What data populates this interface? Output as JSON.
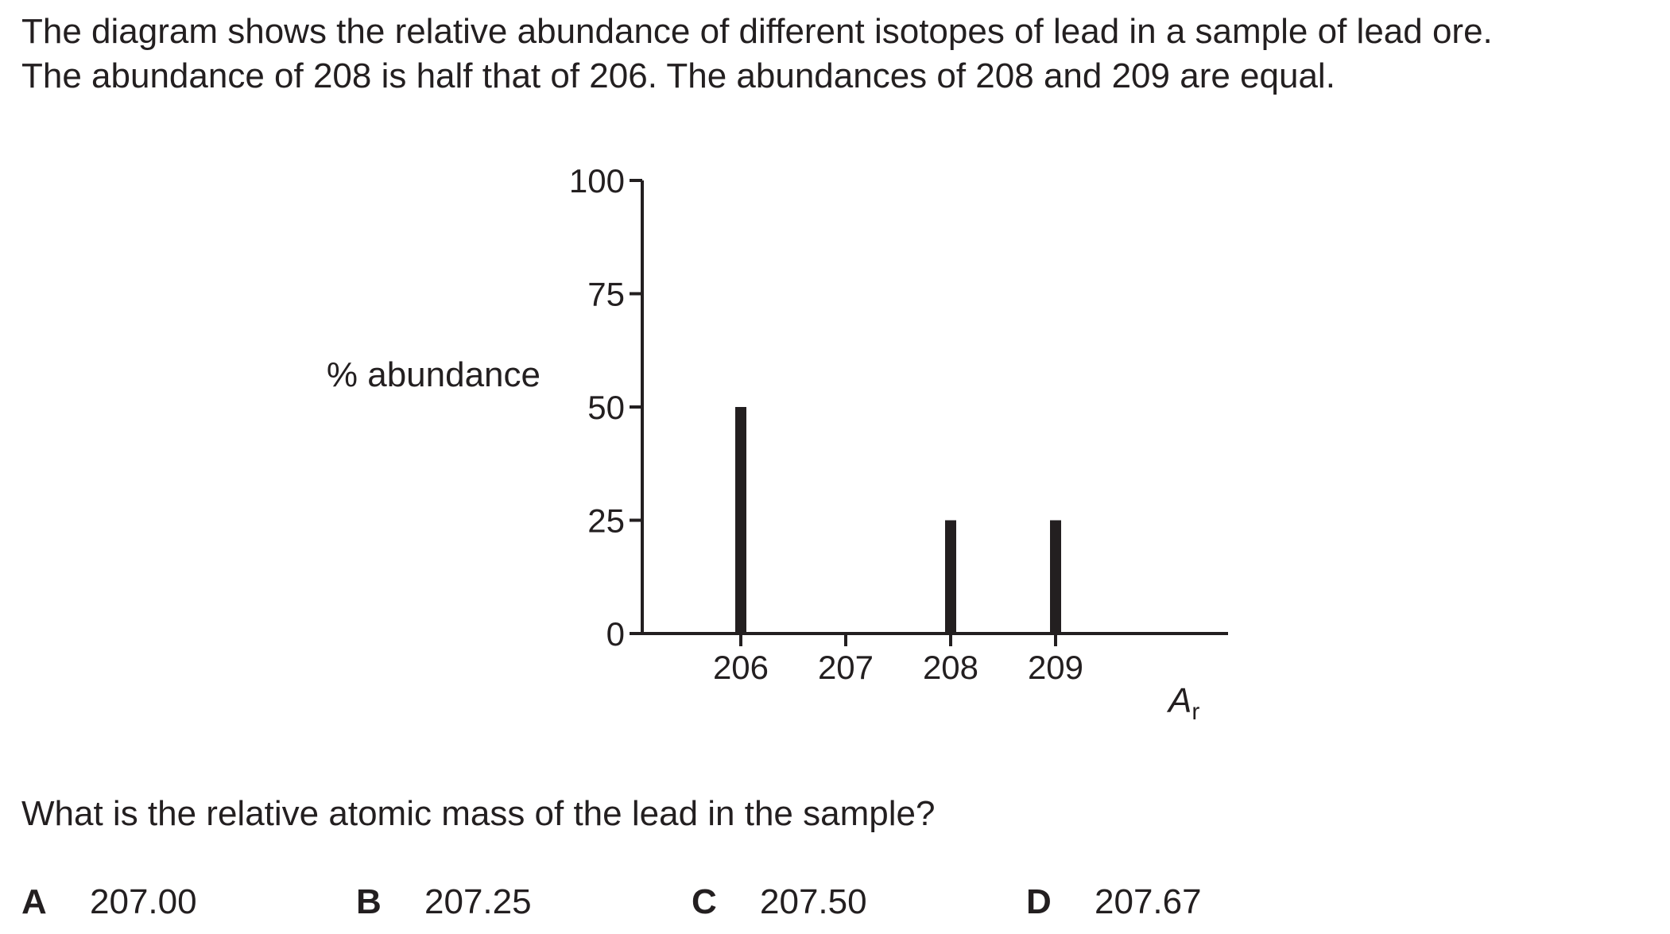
{
  "intro": {
    "line1": "The diagram shows the relative abundance of different isotopes of lead in a sample of lead ore.",
    "line2": "The abundance of 208 is half that of 206. The abundances of 208 and 209 are equal."
  },
  "chart_data": {
    "type": "bar",
    "ylabel": "% abundance",
    "xlabel": "A",
    "xlabel_subscript": "r",
    "categories": [
      "206",
      "207",
      "208",
      "209"
    ],
    "values": [
      50,
      0,
      25,
      25
    ],
    "ylim": [
      0,
      100
    ],
    "yticks": [
      0,
      25,
      50,
      75,
      100
    ],
    "grid": false
  },
  "question": "What is the relative atomic mass of the lead in the sample?",
  "options": [
    {
      "letter": "A",
      "value": "207.00"
    },
    {
      "letter": "B",
      "value": "207.25"
    },
    {
      "letter": "C",
      "value": "207.50"
    },
    {
      "letter": "D",
      "value": "207.67"
    }
  ]
}
